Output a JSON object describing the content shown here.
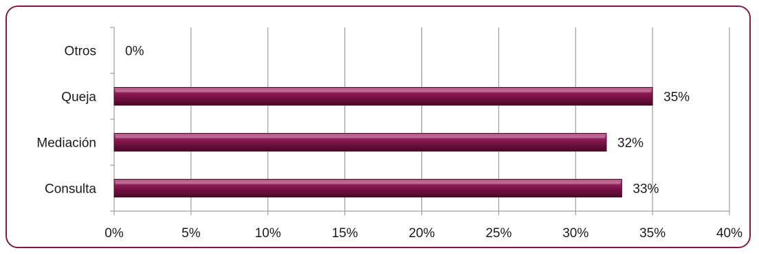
{
  "chart_data": {
    "type": "bar",
    "orientation": "horizontal",
    "categories": [
      "Otros",
      "Queja",
      "Mediación",
      "Consulta"
    ],
    "values": [
      0,
      35,
      32,
      33
    ],
    "data_labels": [
      "0%",
      "35%",
      "32%",
      "33%"
    ],
    "xlim": [
      0,
      40
    ],
    "x_ticks": [
      0,
      5,
      10,
      15,
      20,
      25,
      30,
      35,
      40
    ],
    "x_tick_labels": [
      "0%",
      "5%",
      "10%",
      "15%",
      "20%",
      "25%",
      "30%",
      "35%",
      "40%"
    ],
    "grid": "vertical",
    "legend": "none",
    "bar_color": "#8a1a52",
    "frame_color": "#7a1c46"
  }
}
